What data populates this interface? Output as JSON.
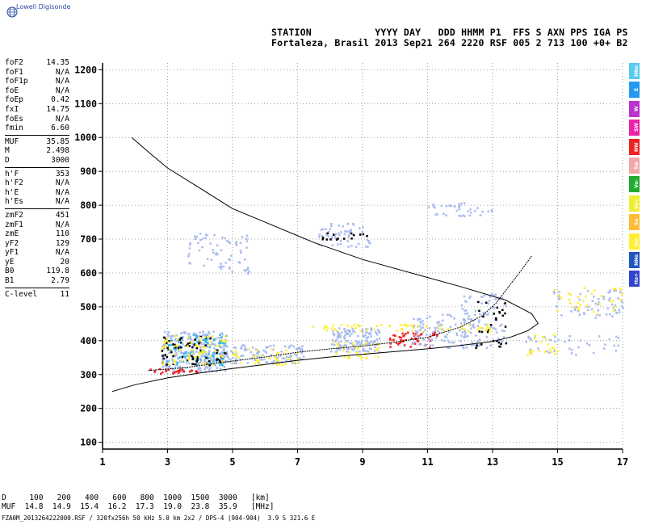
{
  "brand": {
    "text": "Lowell Digisonde"
  },
  "header": {
    "line1": "STATION           YYYY DAY   DDD HHMM P1  FFS S AXN PPS IGA PS",
    "line2": "Fortaleza, Brasil 2013 Sep21 264 2220 RSF 005 2 713 100 +0+ B2"
  },
  "params": {
    "group1": [
      {
        "label": "foF2",
        "value": "14.35"
      },
      {
        "label": "foF1",
        "value": "N/A"
      },
      {
        "label": "foF1p",
        "value": "N/A"
      },
      {
        "label": "foE",
        "value": "N/A"
      },
      {
        "label": "foEp",
        "value": "0.42"
      },
      {
        "label": "fxI",
        "value": "14.75"
      },
      {
        "label": "foEs",
        "value": "N/A"
      },
      {
        "label": "fmin",
        "value": "6.60"
      }
    ],
    "group2": [
      {
        "label": "MUF",
        "value": "35.85"
      },
      {
        "label": "M",
        "value": "2.498"
      },
      {
        "label": "D",
        "value": "3000"
      }
    ],
    "group3": [
      {
        "label": "h'F",
        "value": "353"
      },
      {
        "label": "h'F2",
        "value": "N/A"
      },
      {
        "label": "h'E",
        "value": "N/A"
      },
      {
        "label": "h'Es",
        "value": "N/A"
      }
    ],
    "group4": [
      {
        "label": "zmF2",
        "value": "451"
      },
      {
        "label": "zmF1",
        "value": "N/A"
      },
      {
        "label": "zmE",
        "value": "110"
      },
      {
        "label": "yF2",
        "value": "129"
      },
      {
        "label": "yF1",
        "value": "N/A"
      },
      {
        "label": "yE",
        "value": "20"
      },
      {
        "label": "B0",
        "value": "119.8"
      },
      {
        "label": "B1",
        "value": "2.79"
      }
    ],
    "group5": [
      {
        "label": "C-level",
        "value": "11"
      }
    ]
  },
  "muf_table": {
    "line1": "D     100   200   400   600   800  1000  1500  3000   [km]",
    "line2": "MUF  14.8  14.9  15.4  16.2  17.3  19.0  23.8  35.9   [MHz]"
  },
  "footer": "FZA0M_2013264222000.RSF / 320fx256h 50 kHz 5.0 km 2x2 / DPS-4 (904-904)  3.9 S 321.6 E",
  "legend": [
    {
      "label": "NNo",
      "color": "#55ccee"
    },
    {
      "label": "E",
      "color": "#2299ee"
    },
    {
      "label": "W",
      "color": "#bb33cc"
    },
    {
      "label": "SW",
      "color": "#ee22aa"
    },
    {
      "label": "NW",
      "color": "#ee2222"
    },
    {
      "label": "Sw",
      "color": "#f0a8a8"
    },
    {
      "label": "Vo-",
      "color": "#22aa33"
    },
    {
      "label": "Vo+",
      "color": "#eeee33"
    },
    {
      "label": "Se",
      "color": "#ffbb33"
    },
    {
      "label": "Ho-",
      "color": "#ffee33"
    },
    {
      "label": "NNo",
      "color": "#2255bb"
    },
    {
      "label": "Ho+",
      "color": "#3344cc"
    }
  ],
  "chart_data": {
    "type": "scatter",
    "xlim": [
      1,
      17
    ],
    "ylim": [
      80,
      1220
    ],
    "x_ticks": [
      1,
      3,
      5,
      7,
      9,
      11,
      13,
      15,
      17
    ],
    "y_ticks": [
      100,
      200,
      300,
      400,
      500,
      600,
      700,
      800,
      900,
      1000,
      1100,
      1200
    ],
    "grid": true,
    "profile_curve": [
      [
        1.3,
        250
      ],
      [
        2.0,
        270
      ],
      [
        3.0,
        290
      ],
      [
        4.0,
        305
      ],
      [
        5.0,
        318
      ],
      [
        6.0,
        330
      ],
      [
        7.0,
        342
      ],
      [
        8.0,
        352
      ],
      [
        9.0,
        360
      ],
      [
        10.0,
        368
      ],
      [
        11.0,
        376
      ],
      [
        12.0,
        386
      ],
      [
        13.0,
        398
      ],
      [
        13.6,
        412
      ],
      [
        14.1,
        430
      ],
      [
        14.4,
        451
      ],
      [
        14.2,
        480
      ],
      [
        13.4,
        520
      ],
      [
        12.0,
        560
      ],
      [
        10.5,
        600
      ],
      [
        9.0,
        640
      ],
      [
        7.5,
        690
      ],
      [
        6.0,
        750
      ],
      [
        5.0,
        790
      ],
      [
        4.0,
        850
      ],
      [
        3.0,
        910
      ],
      [
        2.5,
        950
      ],
      [
        1.9,
        1000
      ]
    ],
    "trace_line": [
      [
        2.4,
        312
      ],
      [
        3.5,
        320
      ],
      [
        5.0,
        340
      ],
      [
        6.0,
        352
      ],
      [
        7.0,
        366
      ],
      [
        8.0,
        376
      ],
      [
        9.0,
        384
      ],
      [
        10.0,
        396
      ],
      [
        11.0,
        410
      ],
      [
        12.0,
        440
      ],
      [
        12.7,
        475
      ],
      [
        13.1,
        510
      ],
      [
        13.5,
        560
      ],
      [
        13.9,
        610
      ],
      [
        14.2,
        650
      ]
    ],
    "echo_regions": [
      {
        "x": [
          2.8,
          4.8
        ],
        "y": [
          310,
          430
        ],
        "color": "#aabbee",
        "count": 260
      },
      {
        "x": [
          2.8,
          4.8
        ],
        "y": [
          330,
          420
        ],
        "color": "#33bbee",
        "count": 90
      },
      {
        "x": [
          2.8,
          4.8
        ],
        "y": [
          330,
          420
        ],
        "color": "#000000",
        "count": 70
      },
      {
        "x": [
          2.8,
          4.8
        ],
        "y": [
          330,
          420
        ],
        "color": "#ffee33",
        "count": 70
      },
      {
        "x": [
          2.4,
          4.0
        ],
        "y": [
          305,
          320
        ],
        "color": "#ee2222",
        "count": 25
      },
      {
        "x": [
          4.6,
          7.2
        ],
        "y": [
          335,
          390
        ],
        "color": "#aabbee",
        "count": 140
      },
      {
        "x": [
          4.8,
          7.0
        ],
        "y": [
          330,
          380
        ],
        "color": "#ffee33",
        "count": 40
      },
      {
        "x": [
          8.0,
          9.5
        ],
        "y": [
          370,
          440
        ],
        "color": "#aabbee",
        "count": 150
      },
      {
        "x": [
          8.0,
          9.5
        ],
        "y": [
          350,
          400
        ],
        "color": "#ffee33",
        "count": 35
      },
      {
        "x": [
          9.8,
          11.3
        ],
        "y": [
          380,
          430
        ],
        "color": "#ee2222",
        "count": 55
      },
      {
        "x": [
          10.5,
          12.6
        ],
        "y": [
          380,
          480
        ],
        "color": "#aabbee",
        "count": 110
      },
      {
        "x": [
          12.0,
          13.4
        ],
        "y": [
          380,
          540
        ],
        "color": "#aabbee",
        "count": 80
      },
      {
        "x": [
          12.4,
          13.4
        ],
        "y": [
          380,
          520
        ],
        "color": "#000000",
        "count": 30
      },
      {
        "x": [
          7.4,
          13.0
        ],
        "y": [
          430,
          450
        ],
        "color": "#ffee33",
        "count": 60
      },
      {
        "x": [
          14.8,
          17.0
        ],
        "y": [
          470,
          560
        ],
        "color": "#aabbee",
        "count": 60
      },
      {
        "x": [
          14.8,
          17.0
        ],
        "y": [
          480,
          560
        ],
        "color": "#ffee33",
        "count": 35
      },
      {
        "x": [
          3.6,
          5.5
        ],
        "y": [
          600,
          720
        ],
        "color": "#aabbee",
        "count": 70
      },
      {
        "x": [
          7.6,
          9.2
        ],
        "y": [
          680,
          750
        ],
        "color": "#aabbee",
        "count": 60
      },
      {
        "x": [
          7.6,
          9.2
        ],
        "y": [
          690,
          720
        ],
        "color": "#000000",
        "count": 15
      },
      {
        "x": [
          10.8,
          13.0
        ],
        "y": [
          770,
          810
        ],
        "color": "#aabbee",
        "count": 35
      },
      {
        "x": [
          14.0,
          17.0
        ],
        "y": [
          360,
          420
        ],
        "color": "#aabbee",
        "count": 40
      },
      {
        "x": [
          14.0,
          15.0
        ],
        "y": [
          360,
          420
        ],
        "color": "#ffee33",
        "count": 20
      }
    ]
  }
}
